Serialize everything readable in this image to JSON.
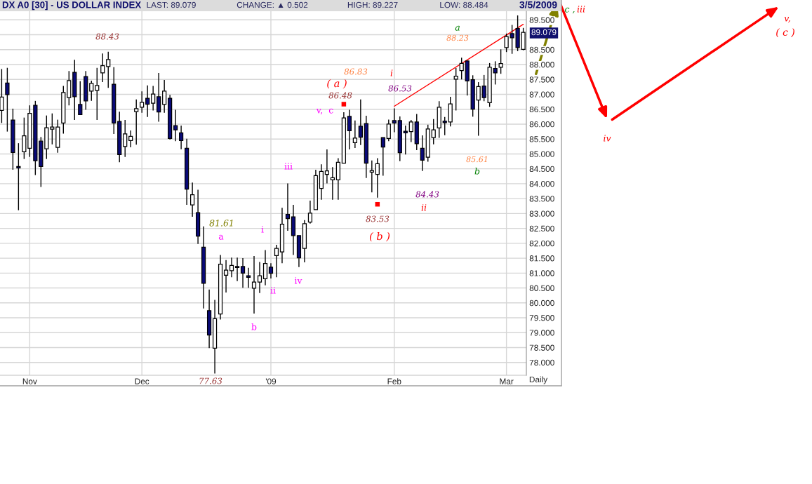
{
  "chart_data": {
    "type": "candlestick",
    "title": "DX A0 [30] - US DOLLAR INDEX",
    "categories": [
      null,
      null,
      null,
      null,
      null,
      "Nov",
      null,
      null,
      null,
      null,
      null,
      null,
      null,
      null,
      null,
      null,
      null,
      null,
      null,
      null,
      null,
      null,
      null,
      null,
      null,
      "Dec",
      null,
      null,
      null,
      null,
      null,
      null,
      null,
      null,
      null,
      null,
      null,
      null,
      null,
      null,
      null,
      null,
      null,
      null,
      null,
      null,
      null,
      null,
      "'09",
      null,
      null,
      null,
      null,
      null,
      null,
      null,
      null,
      null,
      null,
      null,
      null,
      null,
      null,
      null,
      null,
      null,
      null,
      null,
      null,
      null,
      "Feb",
      null,
      null,
      null,
      null,
      null,
      null,
      null,
      null,
      null,
      null,
      null,
      null,
      null,
      null,
      null,
      null,
      null,
      null,
      null,
      "Mar",
      null,
      null,
      null
    ],
    "ohlc": [
      [
        86.46,
        87.85,
        86.04,
        86.91
      ],
      [
        87.38,
        87.89,
        85.75,
        86.99
      ],
      [
        86.14,
        86.52,
        84.47,
        85.05
      ],
      [
        84.58,
        85.36,
        83.11,
        84.53
      ],
      [
        85.07,
        86.22,
        84.83,
        85.61
      ],
      [
        85.19,
        86.63,
        84.9,
        86.36
      ],
      [
        86.63,
        86.78,
        84.29,
        84.77
      ],
      [
        85.43,
        85.57,
        83.89,
        84.58
      ],
      [
        85.17,
        86.29,
        84.83,
        85.88
      ],
      [
        85.83,
        86.36,
        85.32,
        85.9
      ],
      [
        85.22,
        86.15,
        85.04,
        85.9
      ],
      [
        86.04,
        87.28,
        85.68,
        87.06
      ],
      [
        86.89,
        87.78,
        86.63,
        87.46
      ],
      [
        87.74,
        88.16,
        86.14,
        86.92
      ],
      [
        86.66,
        87.44,
        86.32,
        86.32
      ],
      [
        87.6,
        87.78,
        86.48,
        86.78
      ],
      [
        87.11,
        87.46,
        86.78,
        87.37
      ],
      [
        87.13,
        87.89,
        86.14,
        87.3
      ],
      [
        87.72,
        88.37,
        87.41,
        87.96
      ],
      [
        87.93,
        88.43,
        87.22,
        88.17
      ],
      [
        87.34,
        87.91,
        85.67,
        86.04
      ],
      [
        86.09,
        86.42,
        84.72,
        84.98
      ],
      [
        85.25,
        86.14,
        84.9,
        85.67
      ],
      [
        85.45,
        85.79,
        85.22,
        85.59
      ],
      [
        86.42,
        86.83,
        85.31,
        86.52
      ],
      [
        86.57,
        87.1,
        86.38,
        86.73
      ],
      [
        86.87,
        87.3,
        86.24,
        86.67
      ],
      [
        86.7,
        87.28,
        86.46,
        87.01
      ],
      [
        86.92,
        87.72,
        86.08,
        86.41
      ],
      [
        86.66,
        87.48,
        86.38,
        87.11
      ],
      [
        86.87,
        86.98,
        85.48,
        85.52
      ],
      [
        85.95,
        86.48,
        85.43,
        85.81
      ],
      [
        85.71,
        85.95,
        85.16,
        85.45
      ],
      [
        85.19,
        85.51,
        83.29,
        83.82
      ],
      [
        83.29,
        84.04,
        82.89,
        83.63
      ],
      [
        83.03,
        83.8,
        81.98,
        82.24
      ],
      [
        81.87,
        82.57,
        79.81,
        80.66
      ],
      [
        79.74,
        80.45,
        78.48,
        78.92
      ],
      [
        78.48,
        80.1,
        77.63,
        79.47
      ],
      [
        79.63,
        81.61,
        79.44,
        81.3
      ],
      [
        80.93,
        81.44,
        80.35,
        81.1
      ],
      [
        81.08,
        81.52,
        80.86,
        81.26
      ],
      [
        81.22,
        81.52,
        80.73,
        81.19
      ],
      [
        81.22,
        81.5,
        80.51,
        81.0
      ],
      [
        80.91,
        81.18,
        80.51,
        80.86
      ],
      [
        80.49,
        81.57,
        79.64,
        80.7
      ],
      [
        80.7,
        81.37,
        80.33,
        80.91
      ],
      [
        80.81,
        81.77,
        80.59,
        81.32
      ],
      [
        81.2,
        81.33,
        80.82,
        80.99
      ],
      [
        81.59,
        81.95,
        80.86,
        81.83
      ],
      [
        81.71,
        83.19,
        81.33,
        82.64
      ],
      [
        82.97,
        84.01,
        82.42,
        82.83
      ],
      [
        82.89,
        83.29,
        81.61,
        82.26
      ],
      [
        82.26,
        82.26,
        81.2,
        81.51
      ],
      [
        81.83,
        82.78,
        81.36,
        82.66
      ],
      [
        82.71,
        83.43,
        82.66,
        83.01
      ],
      [
        83.13,
        84.47,
        83.13,
        84.27
      ],
      [
        83.84,
        84.65,
        83.46,
        84.41
      ],
      [
        84.31,
        85.15,
        84.01,
        84.43
      ],
      [
        84.13,
        84.56,
        83.46,
        84.2
      ],
      [
        84.13,
        84.86,
        83.46,
        84.72
      ],
      [
        84.69,
        86.4,
        84.69,
        86.21
      ],
      [
        86.26,
        86.48,
        85.15,
        85.78
      ],
      [
        85.38,
        86.12,
        85.2,
        85.53
      ],
      [
        85.93,
        86.83,
        85.3,
        85.56
      ],
      [
        86.02,
        86.28,
        84.19,
        84.69
      ],
      [
        84.39,
        84.78,
        83.71,
        84.44
      ],
      [
        84.31,
        84.86,
        83.53,
        84.67
      ],
      [
        85.55,
        85.55,
        84.27,
        85.23
      ],
      [
        85.52,
        86.15,
        85.43,
        86.0
      ],
      [
        86.12,
        86.53,
        85.73,
        86.04
      ],
      [
        86.12,
        86.26,
        84.76,
        85.04
      ],
      [
        85.76,
        85.95,
        84.98,
        85.71
      ],
      [
        85.75,
        86.14,
        85.4,
        86.07
      ],
      [
        86.07,
        86.34,
        85.13,
        85.34
      ],
      [
        85.19,
        85.62,
        84.43,
        84.79
      ],
      [
        84.89,
        85.98,
        84.74,
        85.84
      ],
      [
        85.55,
        86.17,
        85.32,
        85.81
      ],
      [
        85.87,
        86.77,
        85.54,
        86.57
      ],
      [
        86.1,
        86.24,
        85.63,
        86.05
      ],
      [
        86.07,
        86.92,
        85.92,
        86.68
      ],
      [
        87.51,
        87.88,
        86.46,
        87.61
      ],
      [
        87.8,
        88.23,
        87.5,
        88.04
      ],
      [
        88.12,
        88.13,
        86.96,
        87.45
      ],
      [
        87.49,
        87.64,
        86.25,
        86.5
      ],
      [
        86.81,
        87.41,
        85.61,
        87.26
      ],
      [
        87.28,
        87.65,
        86.77,
        86.89
      ],
      [
        86.72,
        88.05,
        86.58,
        87.91
      ],
      [
        87.87,
        88.11,
        87.33,
        87.72
      ],
      [
        87.91,
        88.51,
        87.69,
        88.03
      ],
      [
        88.57,
        89.04,
        88.42,
        88.94
      ],
      [
        89.04,
        89.33,
        88.36,
        88.9
      ],
      [
        89.21,
        89.65,
        88.45,
        88.57
      ],
      [
        88.51,
        89.23,
        88.48,
        89.08
      ]
    ],
    "series": [
      {
        "type": "scatter",
        "marker": "square",
        "color": "#ff0000",
        "values": [
          null,
          null,
          null,
          null,
          null,
          null,
          null,
          null,
          null,
          null,
          null,
          null,
          null,
          null,
          null,
          null,
          null,
          null,
          null,
          null,
          null,
          null,
          null,
          null,
          null,
          null,
          null,
          null,
          null,
          null,
          null,
          null,
          null,
          null,
          null,
          null,
          null,
          null,
          null,
          null,
          null,
          null,
          null,
          null,
          null,
          null,
          null,
          null,
          null,
          null,
          null,
          null,
          null,
          null,
          null,
          null,
          null,
          null,
          null,
          null,
          null,
          86.67,
          null,
          null,
          null,
          null,
          null,
          83.31,
          null,
          null,
          null,
          null,
          null,
          null,
          null,
          null,
          null,
          null,
          null,
          null,
          null,
          null,
          null,
          null,
          null,
          null,
          null,
          null,
          null,
          null,
          null,
          null,
          null,
          null
        ]
      },
      {
        "type": "line",
        "color": "#ff0000",
        "values": [
          null,
          null,
          null,
          null,
          null,
          null,
          null,
          null,
          null,
          null,
          null,
          null,
          null,
          null,
          null,
          null,
          null,
          null,
          null,
          null,
          null,
          null,
          null,
          null,
          null,
          null,
          null,
          null,
          null,
          null,
          null,
          null,
          null,
          null,
          null,
          null,
          null,
          null,
          null,
          null,
          null,
          null,
          null,
          null,
          null,
          null,
          null,
          null,
          null,
          null,
          null,
          null,
          null,
          null,
          null,
          null,
          null,
          null,
          null,
          null,
          null,
          null,
          null,
          null,
          null,
          null,
          null,
          null,
          null,
          null,
          86.6,
          null,
          null,
          null,
          null,
          null,
          null,
          null,
          null,
          null,
          null,
          null,
          null,
          null,
          null,
          null,
          null,
          null,
          null,
          null,
          null,
          null,
          null,
          89.35
        ]
      }
    ],
    "ylim": [
      77.57,
      89.79
    ],
    "yticks": [
      {
        "value": 78,
        "label": "78.000"
      },
      {
        "value": 78.5,
        "label": "78.500"
      },
      {
        "value": 79,
        "label": "79.000"
      },
      {
        "value": 79.5,
        "label": "79.500"
      },
      {
        "value": 80,
        "label": "80.000"
      },
      {
        "value": 80.5,
        "label": "80.500"
      },
      {
        "value": 81,
        "label": "81.000"
      },
      {
        "value": 81.5,
        "label": "81.500"
      },
      {
        "value": 82,
        "label": "82.000"
      },
      {
        "value": 82.5,
        "label": "82.500"
      },
      {
        "value": 83,
        "label": "83.000"
      },
      {
        "value": 83.5,
        "label": "83.500"
      },
      {
        "value": 84,
        "label": "84.000"
      },
      {
        "value": 84.5,
        "label": "84.500"
      },
      {
        "value": 85,
        "label": "85.000"
      },
      {
        "value": 85.5,
        "label": "85.500"
      },
      {
        "value": 86,
        "label": "86.000"
      },
      {
        "value": 86.5,
        "label": "86.500"
      },
      {
        "value": 87,
        "label": "87.000"
      },
      {
        "value": 87.5,
        "label": "87.500"
      },
      {
        "value": 88,
        "label": "88.000"
      },
      {
        "value": 88.5,
        "label": "88.500"
      },
      {
        "value": 89,
        "label": null
      },
      {
        "value": 89.5,
        "label": "89.500"
      }
    ],
    "grid": true,
    "annotations": [
      "LAST: 89.079",
      "CHANGE: ▲ 0.502",
      "HIGH: 89.227",
      "LOW: 88.484",
      "3/5/2009",
      "88.43",
      "81.61",
      "a",
      "b",
      "77.63",
      "i",
      "ii",
      "iii",
      "iv",
      "v,  c",
      "( a )",
      "86.48",
      "86.83",
      "i",
      "86.53",
      "83.53",
      "( b )",
      "84.43",
      "ii",
      "a",
      "88.23",
      "85.61",
      "b",
      "c ,",
      "iii",
      "iv",
      "v,",
      "( c )",
      "Daily",
      "89.079"
    ]
  }
}
